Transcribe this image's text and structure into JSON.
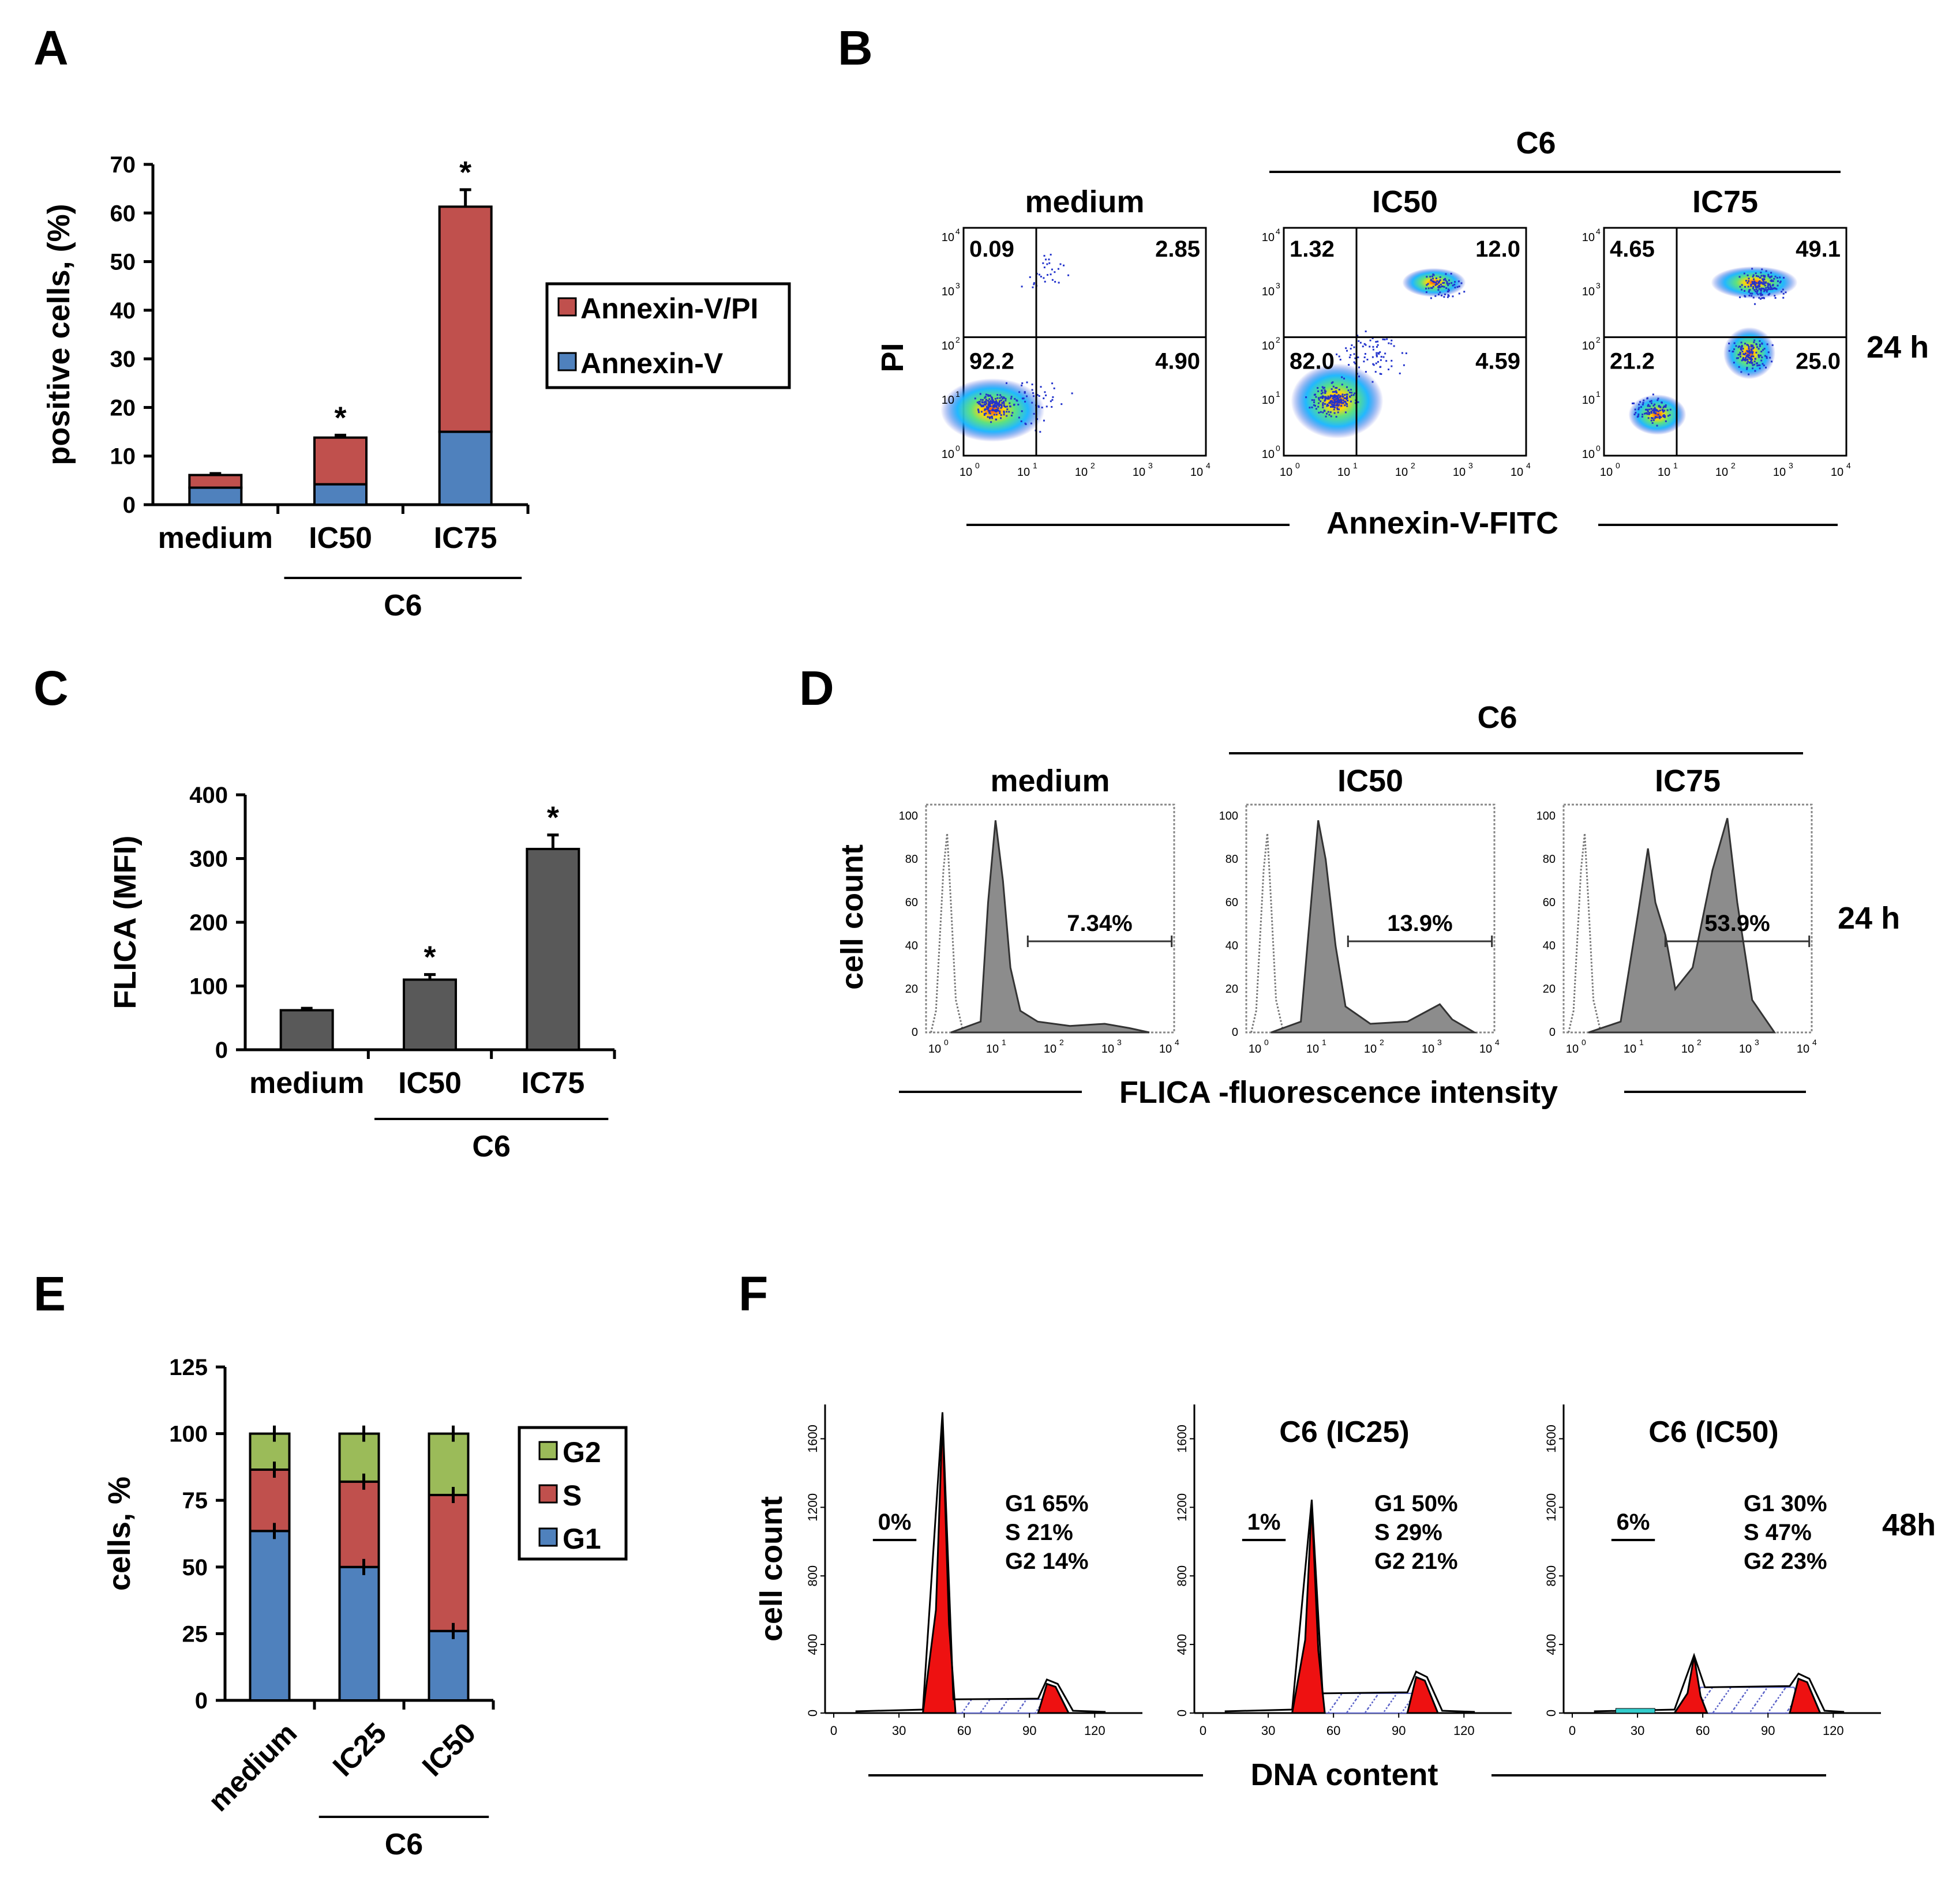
{
  "panels": {
    "A": {
      "letter": "A"
    },
    "B": {
      "letter": "B",
      "group_label": "C6",
      "xlabel": "Annexin-V-FITC",
      "ylabel": "PI",
      "time": "24 h",
      "plots": [
        {
          "title": "medium",
          "q": [
            "0.09",
            "2.85",
            "92.2",
            "4.90"
          ]
        },
        {
          "title": "IC50",
          "q": [
            "1.32",
            "12.0",
            "82.0",
            "4.59"
          ]
        },
        {
          "title": "IC75",
          "q": [
            "4.65",
            "49.1",
            "21.2",
            "25.0"
          ]
        }
      ],
      "ticks": [
        "10",
        "10",
        "10",
        "10",
        "10"
      ],
      "exps": [
        "0",
        "1",
        "2",
        "3",
        "4"
      ]
    },
    "C": {
      "letter": "C"
    },
    "D": {
      "letter": "D",
      "group_label": "C6",
      "xlabel": "FLICA -fluorescence intensity",
      "ylabel": "cell count",
      "time": "24 h",
      "plots": [
        {
          "title": "medium",
          "pct": "7.34%"
        },
        {
          "title": "IC50",
          "pct": "13.9%"
        },
        {
          "title": "IC75",
          "pct": "53.9%"
        }
      ],
      "yticks": [
        "0",
        "20",
        "40",
        "60",
        "80",
        "100"
      ]
    },
    "E": {
      "letter": "E"
    },
    "F": {
      "letter": "F",
      "xlabel": "DNA content",
      "ylabel": "cell count",
      "time": "48h",
      "plots": [
        {
          "title": "",
          "sub": "0%",
          "g": [
            "G1 65%",
            "S 21%",
            "G2 14%"
          ]
        },
        {
          "title": "C6 (IC25)",
          "sub": "1%",
          "g": [
            "G1 50%",
            "S 29%",
            "G2 21%"
          ]
        },
        {
          "title": "C6 (IC50)",
          "sub": "6%",
          "g": [
            "G1 30%",
            "S 47%",
            "G2 23%"
          ]
        }
      ],
      "xticks": [
        "0",
        "30",
        "60",
        "90",
        "120"
      ],
      "yticks": [
        "0",
        "400",
        "800",
        "1200",
        "1600"
      ]
    }
  },
  "chart_data": [
    {
      "id": "A",
      "type": "bar",
      "stacked": true,
      "categories": [
        "medium",
        "IC50",
        "IC75"
      ],
      "group_label": "C6",
      "ylabel": "positive cells, (%)",
      "ylim": [
        0,
        70
      ],
      "yticks": [
        "0",
        "10",
        "20",
        "30",
        "40",
        "50",
        "60",
        "70"
      ],
      "series": [
        {
          "name": "Annexin-V",
          "values": [
            3.5,
            4.2,
            15
          ],
          "color": "#4f81bd"
        },
        {
          "name": "Annexin-V/PI",
          "values": [
            2.6,
            9.6,
            46.3
          ],
          "color": "#c0504d"
        }
      ],
      "errors": [
        0.3,
        0.5,
        3.5
      ],
      "significance": [
        "",
        "*",
        "*"
      ],
      "legend": "right"
    },
    {
      "id": "C",
      "type": "bar",
      "categories": [
        "medium",
        "IC50",
        "IC75"
      ],
      "group_label": "C6",
      "ylabel": "FLICA  (MFI)",
      "ylim": [
        0,
        400
      ],
      "yticks": [
        "0",
        "100",
        "200",
        "300",
        "400"
      ],
      "series": [
        {
          "name": "FLICA",
          "values": [
            62,
            110,
            315
          ],
          "color": "#595959"
        }
      ],
      "errors": [
        3,
        8,
        22
      ],
      "significance": [
        "",
        "*",
        "*"
      ]
    },
    {
      "id": "E",
      "type": "bar",
      "stacked": true,
      "categories": [
        "medium",
        "IC25",
        "IC50"
      ],
      "group_label": "C6",
      "ylabel": "cells, %",
      "ylim": [
        0,
        125
      ],
      "yticks": [
        "0",
        "25",
        "50",
        "75",
        "100",
        "125"
      ],
      "series": [
        {
          "name": "G1",
          "values": [
            63.5,
            50,
            26
          ],
          "color": "#4f81bd"
        },
        {
          "name": "S",
          "values": [
            23,
            32,
            51
          ],
          "color": "#c0504d"
        },
        {
          "name": "G2",
          "values": [
            13.5,
            18,
            23
          ],
          "color": "#9bbb59"
        }
      ],
      "legend": "right"
    }
  ]
}
